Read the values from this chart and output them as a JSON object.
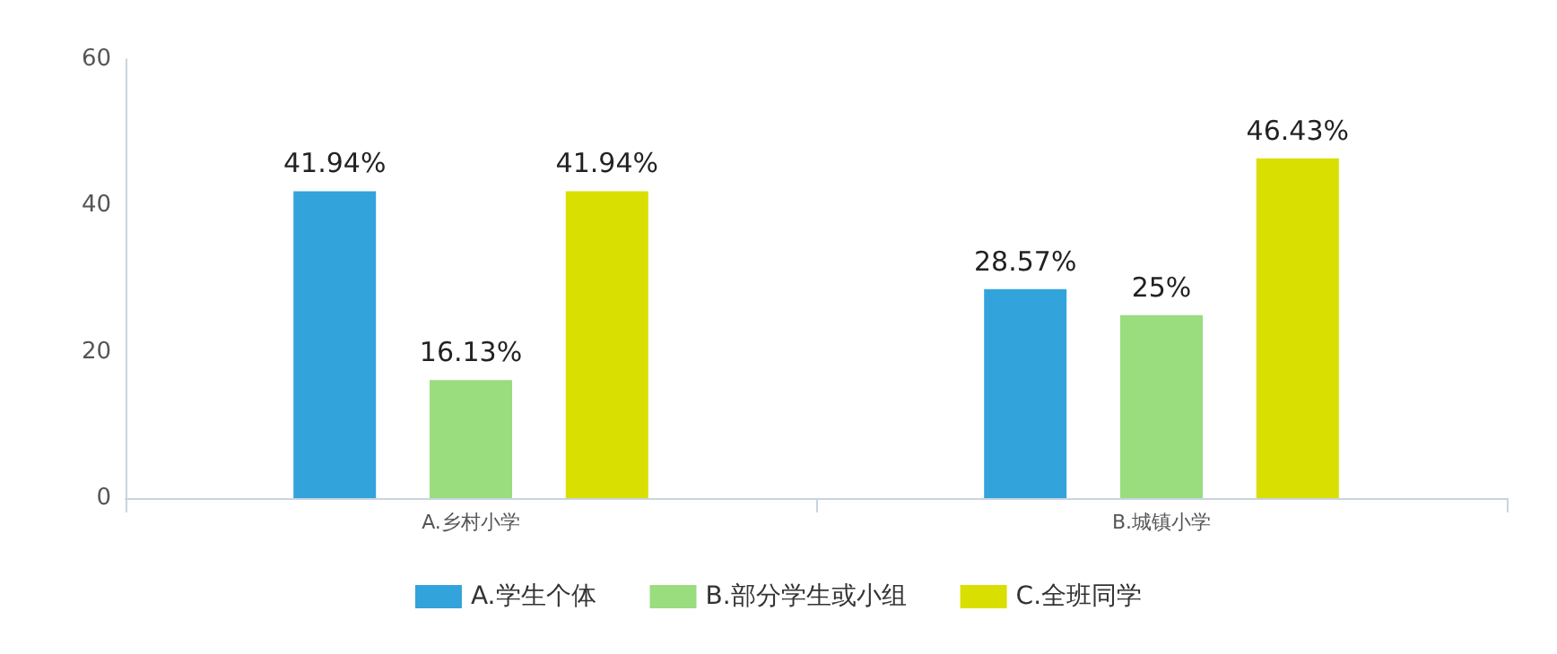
{
  "chart_data": {
    "type": "bar",
    "categories": [
      "A.乡村小学",
      "B.城镇小学"
    ],
    "series": [
      {
        "name": "A.学生个体",
        "color": "#33a3dc",
        "values": [
          41.94,
          28.57
        ],
        "value_labels": [
          "41.94%",
          "28.57%"
        ]
      },
      {
        "name": "B.部分学生或小组",
        "color": "#99dd7f",
        "values": [
          16.13,
          25
        ],
        "value_labels": [
          "16.13%",
          "25%"
        ]
      },
      {
        "name": "C.全班同学",
        "color": "#d9df00",
        "values": [
          41.94,
          46.43
        ],
        "value_labels": [
          "41.94%",
          "46.43%"
        ]
      }
    ],
    "ylim": [
      0,
      60
    ],
    "yticks": [
      0,
      20,
      40,
      60
    ],
    "grid": false,
    "legend": "bottom"
  }
}
